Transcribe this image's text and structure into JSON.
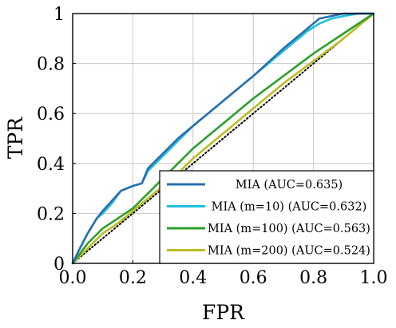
{
  "chart_data": {
    "type": "line",
    "title": "",
    "xlabel": "FPR",
    "ylabel": "TPR",
    "xlim": [
      0,
      1
    ],
    "ylim": [
      0,
      1
    ],
    "grid": true,
    "legend_position": "bottom-right",
    "x_ticks": [
      "0.0",
      "0.2",
      "0.4",
      "0.6",
      "0.8",
      "1.0"
    ],
    "y_ticks": [
      "0",
      "0.2",
      "0.4",
      "0.6",
      "0.8",
      "1"
    ],
    "reference_line": {
      "style": "dotted",
      "color": "#000000",
      "x": [
        0,
        1
      ],
      "y": [
        0,
        1
      ]
    },
    "series": [
      {
        "name": "MIA (AUC=0.635)",
        "color": "#2a6faf",
        "x": [
          0,
          0.02,
          0.05,
          0.08,
          0.1,
          0.13,
          0.16,
          0.2,
          0.23,
          0.25,
          0.3,
          0.35,
          0.4,
          0.5,
          0.6,
          0.7,
          0.78,
          0.82,
          0.86,
          0.9,
          0.95,
          1.0
        ],
        "y": [
          0,
          0.05,
          0.12,
          0.18,
          0.21,
          0.25,
          0.29,
          0.31,
          0.32,
          0.38,
          0.44,
          0.5,
          0.55,
          0.65,
          0.75,
          0.86,
          0.94,
          0.98,
          0.99,
          1.0,
          1.0,
          1.0
        ]
      },
      {
        "name": "MIA (m=10) (AUC=0.632)",
        "color": "#1ec0de",
        "x": [
          0,
          0.02,
          0.05,
          0.08,
          0.1,
          0.13,
          0.16,
          0.2,
          0.23,
          0.25,
          0.3,
          0.35,
          0.4,
          0.5,
          0.6,
          0.7,
          0.78,
          0.82,
          0.86,
          0.9,
          0.95,
          1.0
        ],
        "y": [
          0,
          0.05,
          0.12,
          0.18,
          0.2,
          0.24,
          0.29,
          0.31,
          0.32,
          0.37,
          0.43,
          0.49,
          0.55,
          0.65,
          0.75,
          0.85,
          0.93,
          0.96,
          0.98,
          0.99,
          1.0,
          1.0
        ]
      },
      {
        "name": "MIA (m=100) (AUC=0.563)",
        "color": "#2ca02c",
        "x": [
          0,
          0.05,
          0.1,
          0.15,
          0.2,
          0.25,
          0.3,
          0.35,
          0.4,
          0.5,
          0.6,
          0.7,
          0.8,
          0.9,
          1.0
        ],
        "y": [
          0,
          0.08,
          0.14,
          0.18,
          0.22,
          0.28,
          0.34,
          0.4,
          0.46,
          0.56,
          0.66,
          0.75,
          0.84,
          0.92,
          1.0
        ]
      },
      {
        "name": "MIA (m=200) (AUC=0.524)",
        "color": "#bcbd22",
        "x": [
          0,
          0.05,
          0.1,
          0.15,
          0.2,
          0.25,
          0.3,
          0.35,
          0.4,
          0.5,
          0.6,
          0.7,
          0.8,
          0.9,
          1.0
        ],
        "y": [
          0,
          0.06,
          0.12,
          0.16,
          0.21,
          0.26,
          0.31,
          0.36,
          0.42,
          0.52,
          0.62,
          0.72,
          0.81,
          0.9,
          1.0
        ]
      }
    ]
  }
}
